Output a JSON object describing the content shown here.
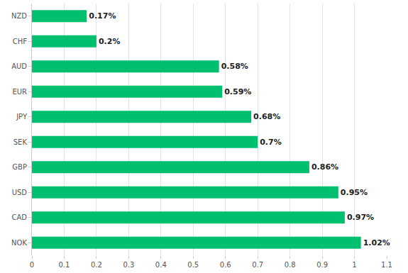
{
  "chart_data": {
    "type": "bar",
    "orientation": "horizontal",
    "categories": [
      "NZD",
      "CHF",
      "AUD",
      "EUR",
      "JPY",
      "SEK",
      "GBP",
      "USD",
      "CAD",
      "NOK"
    ],
    "values": [
      0.17,
      0.2,
      0.58,
      0.59,
      0.68,
      0.7,
      0.86,
      0.95,
      0.97,
      1.02
    ],
    "value_labels": [
      "0.17%",
      "0.2%",
      "0.58%",
      "0.59%",
      "0.68%",
      "0.7%",
      "0.86%",
      "0.95%",
      "0.97%",
      "1.02%"
    ],
    "data_labels": true,
    "color": "#00bf6f",
    "xlim": [
      0,
      1.1
    ],
    "xticks": [
      0,
      0.1,
      0.2,
      0.3,
      0.4,
      0.5,
      0.6,
      0.7,
      0.8,
      0.9,
      1,
      1.1
    ],
    "grid": true
  }
}
